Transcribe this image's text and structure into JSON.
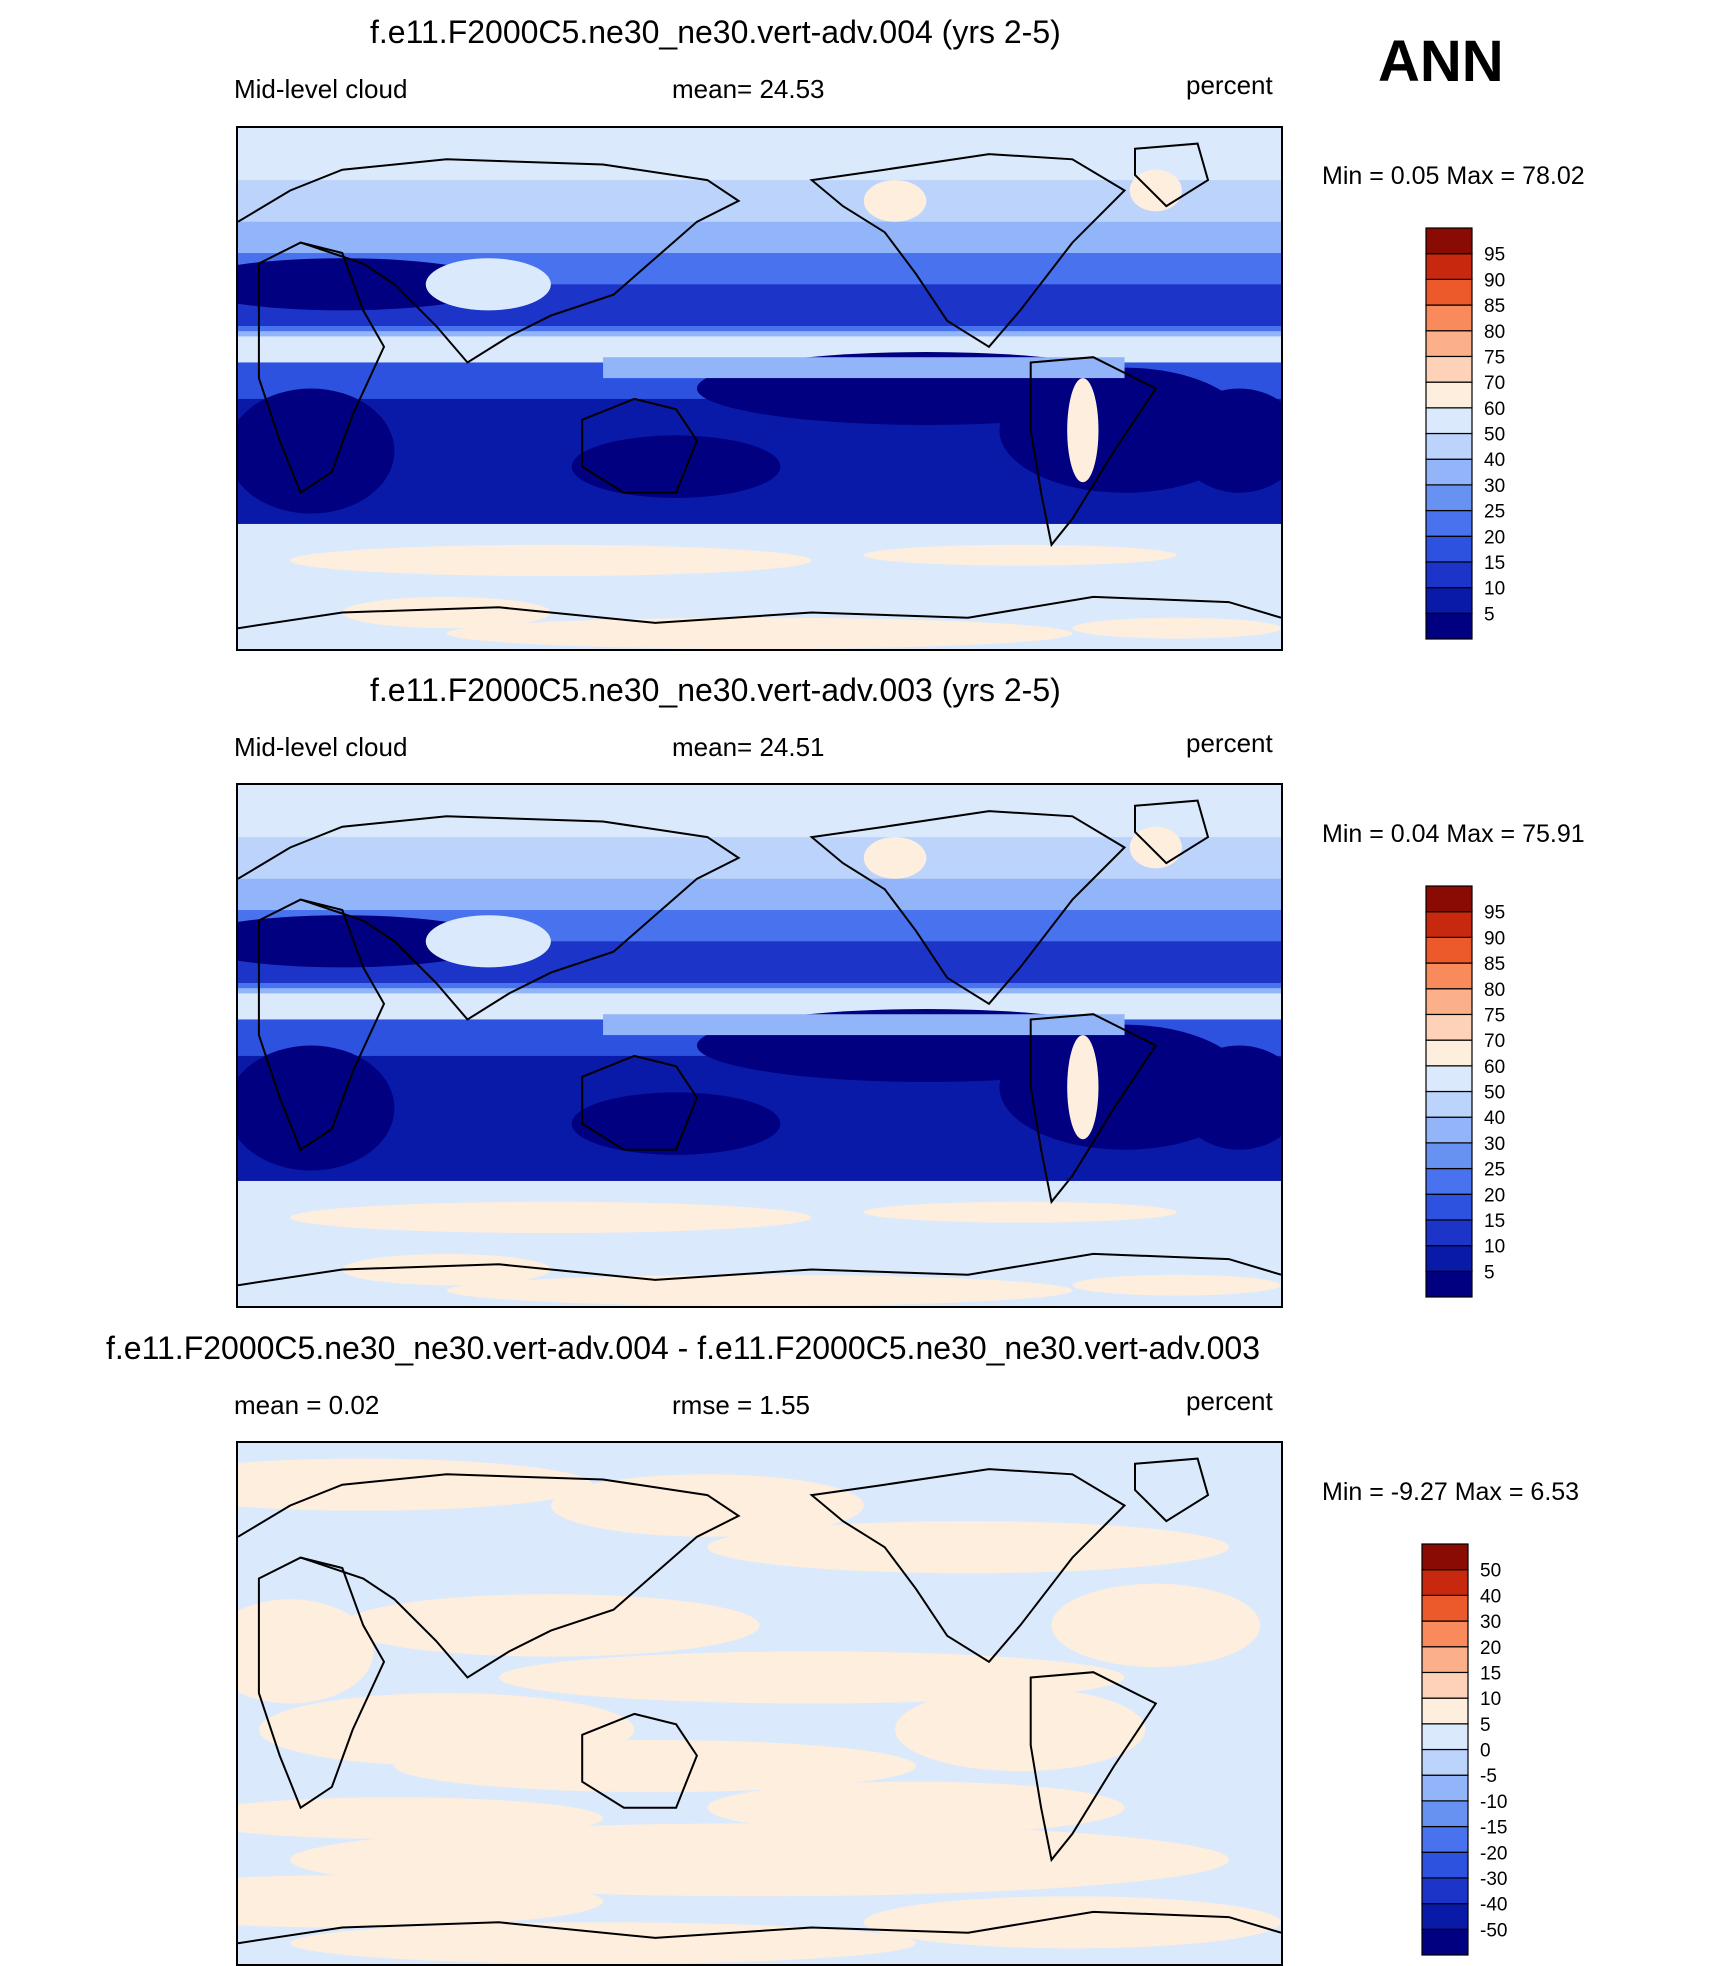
{
  "season_label": "ANN",
  "panels": [
    {
      "title": "f.e11.F2000C5.ne30_ne30.vert-adv.004 (yrs 2-5)",
      "left_label": "Mid-level cloud",
      "center_label": "mean=  24.53",
      "right_label": "percent",
      "minmax": "Min =   0.05 Max =  78.02"
    },
    {
      "title": "f.e11.F2000C5.ne30_ne30.vert-adv.003 (yrs 2-5)",
      "left_label": "Mid-level cloud",
      "center_label": "mean=  24.51",
      "right_label": "percent",
      "minmax": "Min =   0.04 Max =  75.91"
    },
    {
      "title": "f.e11.F2000C5.ne30_ne30.vert-adv.004 - f.e11.F2000C5.ne30_ne30.vert-adv.003",
      "left_label": "mean =   0.02",
      "center_label": "rmse =   1.55",
      "right_label": "percent",
      "minmax": "Min =  -9.27 Max =   6.53"
    }
  ],
  "chart_data": [
    {
      "type": "heatmap",
      "title": "f.e11.F2000C5.ne30_ne30.vert-adv.004 (yrs 2-5)",
      "variable": "Mid-level cloud",
      "units": "percent",
      "mean": 24.53,
      "min": 0.05,
      "max": 78.02,
      "colorbar_levels": [
        5,
        10,
        15,
        20,
        25,
        30,
        40,
        50,
        60,
        70,
        75,
        80,
        85,
        90,
        95
      ],
      "colorbar_colors": [
        "#000080",
        "#0a1aa8",
        "#1c34c8",
        "#2e52e0",
        "#4872ee",
        "#6892f2",
        "#92b4f8",
        "#bcd4fb",
        "#dbe9fd",
        "#fdeede",
        "#fdd2b8",
        "#fcb08a",
        "#f88a5c",
        "#ec5a2c",
        "#c8280e",
        "#8a0a04"
      ]
    },
    {
      "type": "heatmap",
      "title": "f.e11.F2000C5.ne30_ne30.vert-adv.003 (yrs 2-5)",
      "variable": "Mid-level cloud",
      "units": "percent",
      "mean": 24.51,
      "min": 0.04,
      "max": 75.91,
      "colorbar_levels": [
        5,
        10,
        15,
        20,
        25,
        30,
        40,
        50,
        60,
        70,
        75,
        80,
        85,
        90,
        95
      ],
      "colorbar_colors": [
        "#000080",
        "#0a1aa8",
        "#1c34c8",
        "#2e52e0",
        "#4872ee",
        "#6892f2",
        "#92b4f8",
        "#bcd4fb",
        "#dbe9fd",
        "#fdeede",
        "#fdd2b8",
        "#fcb08a",
        "#f88a5c",
        "#ec5a2c",
        "#c8280e",
        "#8a0a04"
      ]
    },
    {
      "type": "heatmap",
      "title": "f.e11.F2000C5.ne30_ne30.vert-adv.004 - f.e11.F2000C5.ne30_ne30.vert-adv.003",
      "units": "percent",
      "mean": 0.02,
      "rmse": 1.55,
      "min": -9.27,
      "max": 6.53,
      "colorbar_levels": [
        -50,
        -40,
        -30,
        -20,
        -15,
        -10,
        -5,
        0,
        5,
        10,
        15,
        20,
        30,
        40,
        50
      ],
      "colorbar_colors": [
        "#000080",
        "#0a1aa8",
        "#1c34c8",
        "#2e52e0",
        "#4872ee",
        "#6892f2",
        "#92b4f8",
        "#bcd4fb",
        "#dbe9fd",
        "#fdeede",
        "#fdd2b8",
        "#fcb08a",
        "#f88a5c",
        "#ec5a2c",
        "#c8280e",
        "#8a0a04"
      ]
    }
  ]
}
